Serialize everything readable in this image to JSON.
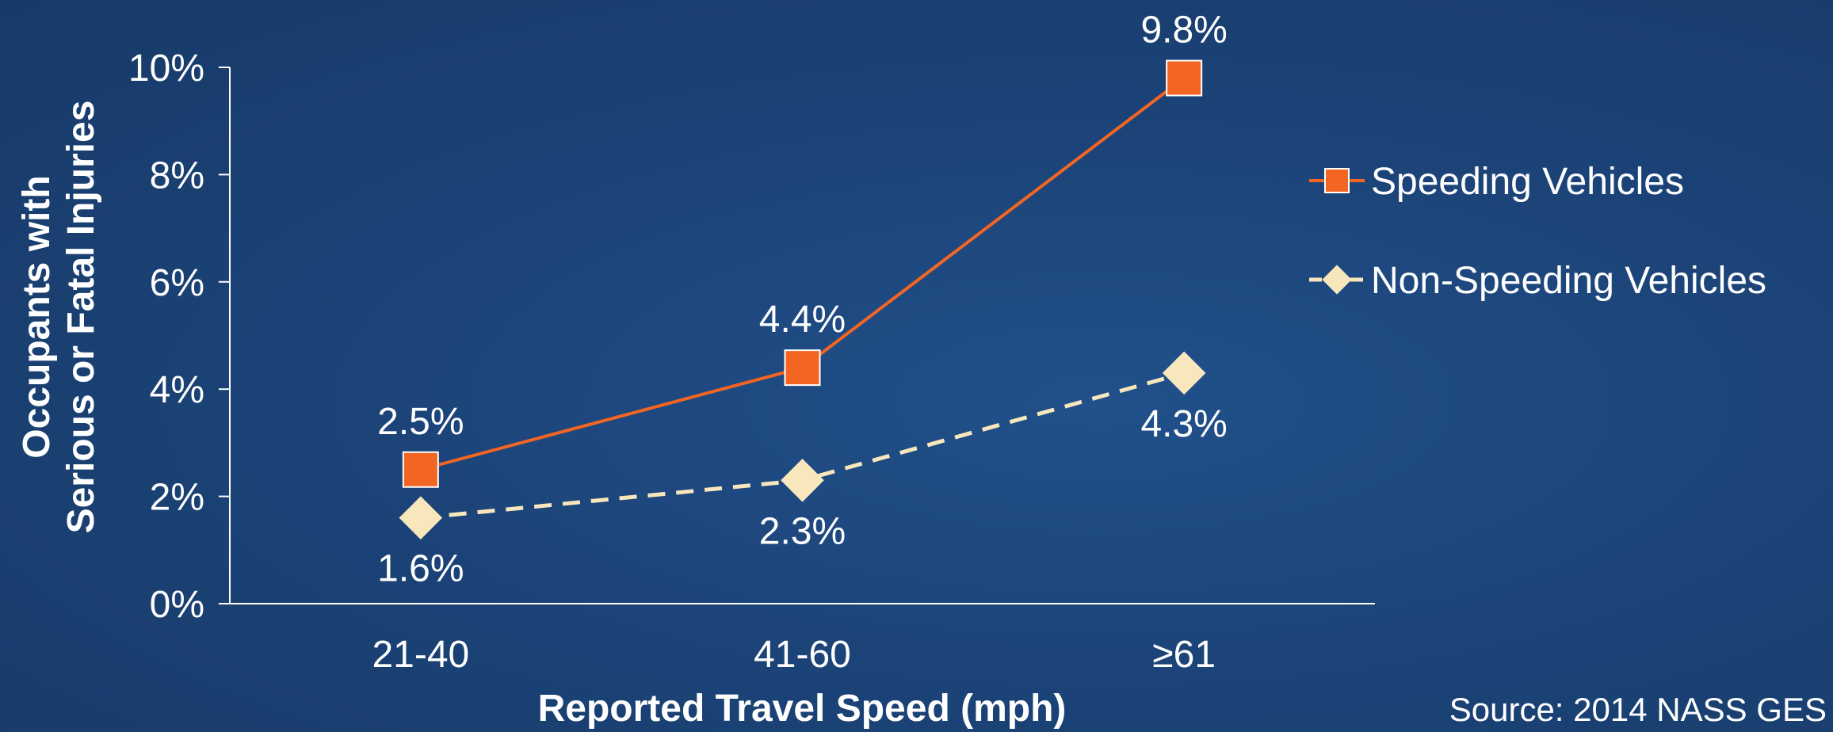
{
  "chart_data": {
    "type": "line",
    "title": "",
    "xlabel": "Reported Travel Speed (mph)",
    "ylabel_lines": [
      "Occupants with",
      "Serious or Fatal Injuries"
    ],
    "categories": [
      "21-40",
      "41-60",
      "≥61"
    ],
    "ylim": [
      0,
      10
    ],
    "y_ticks": [
      0,
      2,
      4,
      6,
      8,
      10
    ],
    "y_tick_labels": [
      "0%",
      "2%",
      "4%",
      "6%",
      "8%",
      "10%"
    ],
    "grid": false,
    "legend_position": "right",
    "series": [
      {
        "name": "Speeding Vehicles",
        "values": [
          2.5,
          4.4,
          9.8
        ],
        "labels": [
          "2.5%",
          "4.4%",
          "9.8%"
        ],
        "color": "#f26522",
        "marker": "square",
        "line_style": "solid"
      },
      {
        "name": "Non-Speeding Vehicles",
        "values": [
          1.6,
          2.3,
          4.3
        ],
        "labels": [
          "1.6%",
          "2.3%",
          "4.3%"
        ],
        "color": "#f8e7bd",
        "marker": "diamond",
        "line_style": "dashed"
      }
    ]
  },
  "source": "Source: 2014 NASS GES"
}
